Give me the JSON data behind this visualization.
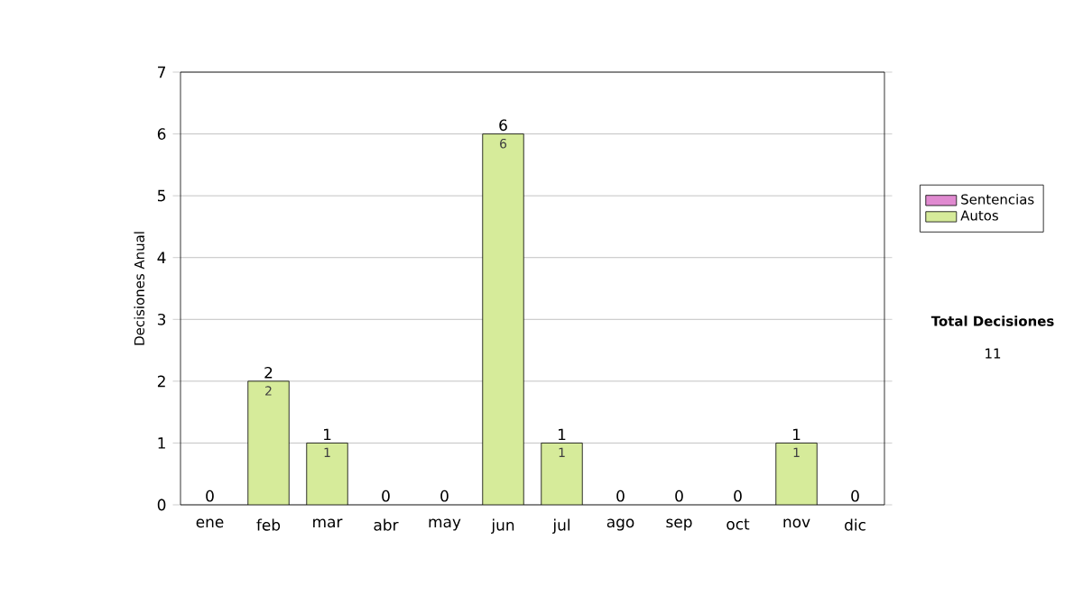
{
  "chart_data": {
    "type": "bar",
    "stacked": true,
    "ylabel": "Decisiones Anual",
    "categories": [
      "ene",
      "feb",
      "mar",
      "abr",
      "may",
      "jun",
      "jul",
      "ago",
      "sep",
      "oct",
      "nov",
      "dic"
    ],
    "series": [
      {
        "name": "Sentencias",
        "color": "#e08ad0",
        "values": [
          0,
          0,
          0,
          0,
          0,
          0,
          0,
          0,
          0,
          0,
          0,
          0
        ]
      },
      {
        "name": "Autos",
        "color": "#d6eb9a",
        "values": [
          0,
          2,
          1,
          0,
          0,
          6,
          1,
          0,
          0,
          0,
          1,
          0
        ],
        "value_labels": [
          null,
          "2",
          "1",
          null,
          null,
          "6",
          "1",
          null,
          null,
          null,
          "1",
          null
        ]
      }
    ],
    "totals": [
      "0",
      "2",
      "1",
      "0",
      "0",
      "6",
      "1",
      "0",
      "0",
      "0",
      "1",
      "0"
    ],
    "ylim": [
      0,
      7
    ],
    "yticks": [
      0,
      1,
      2,
      3,
      4,
      5,
      6,
      7
    ],
    "grid": "y",
    "legend": "right",
    "annotations": [
      "Total Decisiones",
      "11"
    ]
  }
}
